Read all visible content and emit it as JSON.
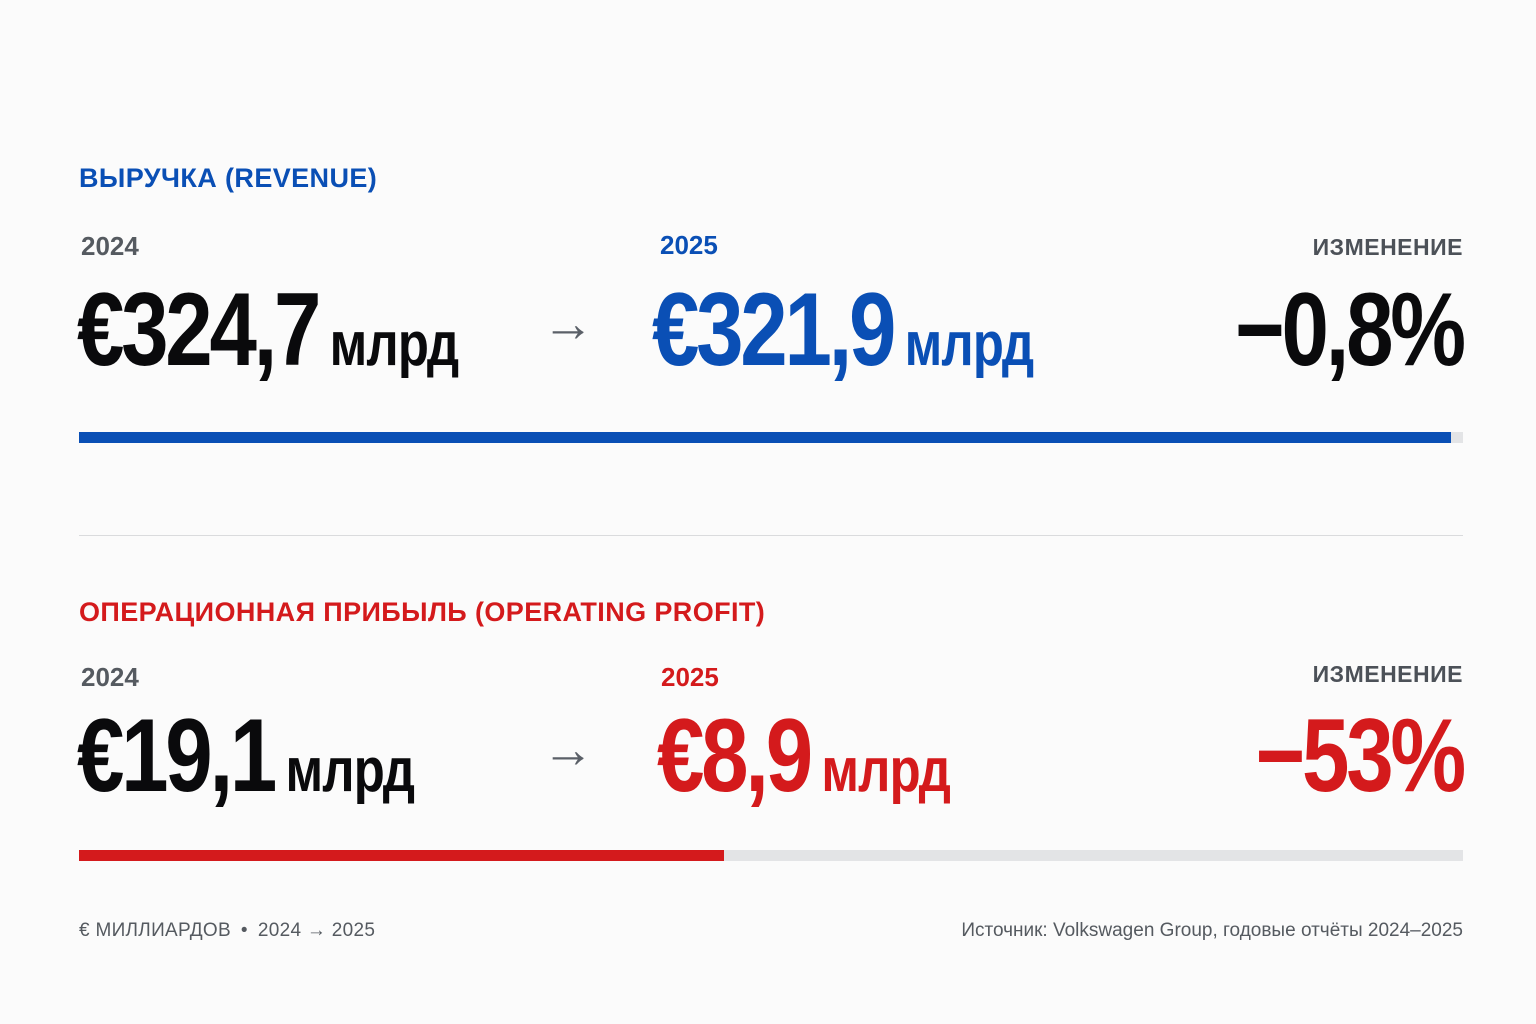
{
  "colors": {
    "revenue_accent": "#0a4fb5",
    "profit_accent": "#d41a1c",
    "text_dark": "#0a0a0c",
    "track": "#e3e4e6"
  },
  "chart_data": [
    {
      "type": "bar",
      "title": "ВЫРУЧКА (REVENUE)",
      "label_prev": "2024",
      "label_curr": "2025",
      "label_change": "ИЗМЕНЕНИЕ",
      "value_prev": 324.7,
      "value_curr": 321.9,
      "value_prev_text": "€324,7",
      "value_curr_text": "€321,9",
      "unit": "млрд",
      "arrow": "→",
      "change_text": "−0,8%",
      "change_pct": -0.8,
      "bar_fraction": 0.991
    },
    {
      "type": "bar",
      "title": "ОПЕРАЦИОННАЯ ПРИБЫЛЬ (OPERATING PROFIT)",
      "label_prev": "2024",
      "label_curr": "2025",
      "label_change": "ИЗМЕНЕНИЕ",
      "value_prev": 19.1,
      "value_curr": 8.9,
      "value_prev_text": "€19,1",
      "value_curr_text": "€8,9",
      "unit": "млрд",
      "arrow": "→",
      "change_text": "−53%",
      "change_pct": -53,
      "bar_fraction": 0.466
    }
  ],
  "footer": {
    "units": "€ МИЛЛИАРДОВ",
    "dot": "•",
    "period": "2024 → 2025",
    "source": "Источник: Volkswagen Group, годовые отчёты 2024–2025"
  }
}
